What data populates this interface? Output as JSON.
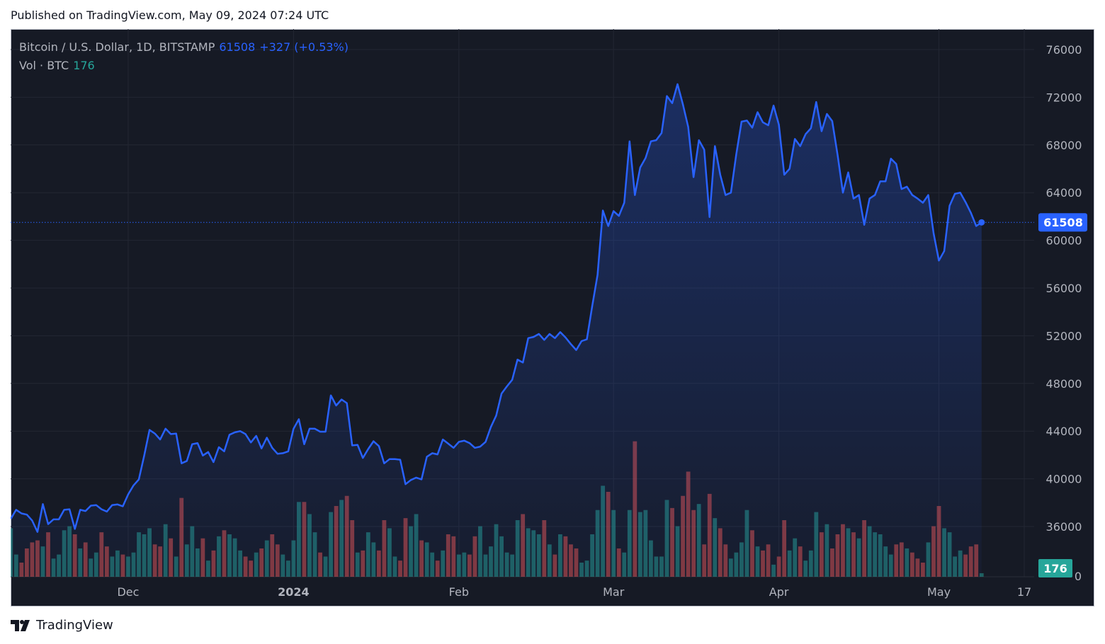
{
  "header": {
    "published": "Published on TradingView.com, May 09, 2024 07:24 UTC"
  },
  "legend": {
    "symbol": "Bitcoin / U.S. Dollar, 1D, BITSTAMP",
    "last": "61508",
    "change": "+327 (+0.53%)",
    "vol_label": "Vol · BTC",
    "vol_value": "176"
  },
  "footer": {
    "brand": "TradingView"
  },
  "colors": {
    "line": "#2962ff",
    "up": "#26a69a",
    "down": "#ef5350",
    "bg": "#161a25",
    "grid": "#232733",
    "text": "#b2b5be"
  },
  "chart_data": {
    "type": "line",
    "title": "Bitcoin / U.S. Dollar, 1D, BITSTAMP",
    "start_date": "2023-11-09",
    "end_date": "2024-05-09",
    "ylim": [
      34200,
      78100
    ],
    "y_ticks": [
      "76000",
      "72000",
      "68000",
      "64000",
      "60000",
      "56000",
      "52000",
      "48000",
      "44000",
      "40000",
      "36000"
    ],
    "x_ticks": [
      {
        "label": "Dec",
        "date": "2023-12-01"
      },
      {
        "label": "2024",
        "date": "2024-01-01"
      },
      {
        "label": "Feb",
        "date": "2024-02-01"
      },
      {
        "label": "Mar",
        "date": "2024-03-01"
      },
      {
        "label": "Apr",
        "date": "2024-04-01"
      },
      {
        "label": "May",
        "date": "2024-05-01"
      },
      {
        "label": "17",
        "date": "2024-05-17"
      }
    ],
    "last_price_label": "61508",
    "volume_axis_label": "0",
    "last_volume_label": "176",
    "close": [
      36650,
      37400,
      37100,
      37000,
      36500,
      35550,
      37880,
      36200,
      36600,
      36600,
      37400,
      37450,
      35800,
      37400,
      37300,
      37750,
      37800,
      37450,
      37250,
      37800,
      37850,
      37700,
      38700,
      39450,
      39950,
      41950,
      44100,
      43800,
      43300,
      44200,
      43750,
      43800,
      41300,
      41500,
      42900,
      43000,
      41950,
      42250,
      41400,
      42650,
      42300,
      43700,
      43900,
      44000,
      43750,
      43050,
      43600,
      42550,
      43450,
      42600,
      42100,
      42150,
      42300,
      44200,
      45000,
      42900,
      44200,
      44200,
      43950,
      43950,
      47000,
      46150,
      46650,
      46350,
      42800,
      42850,
      41750,
      42500,
      43150,
      42750,
      41300,
      41650,
      41650,
      41600,
      39550,
      39900,
      40100,
      39950,
      41850,
      42150,
      42050,
      43300,
      42950,
      42600,
      43100,
      43200,
      43000,
      42600,
      42700,
      43100,
      44350,
      45300,
      47150,
      47750,
      48300,
      50000,
      49750,
      51800,
      51900,
      52150,
      51650,
      52150,
      51800,
      52300,
      51850,
      51300,
      50800,
      51550,
      51700,
      54500,
      57100,
      62500,
      61200,
      62450,
      62050,
      63150,
      68300,
      63800,
      66100,
      66900,
      68300,
      68400,
      69000,
      72100,
      71500,
      73100,
      71400,
      69500,
      65300,
      68400,
      67600,
      61950,
      67900,
      65500,
      63800,
      64000,
      67200,
      69950,
      70050,
      69450,
      70750,
      69900,
      69650,
      71300,
      69700,
      65500,
      66000,
      68500,
      67900,
      68900,
      69400,
      71600,
      69150,
      70600,
      70000,
      67150,
      64000,
      65700,
      63500,
      63800,
      61300,
      63500,
      63800,
      64950,
      64950,
      66850,
      66400,
      64300,
      64500,
      63800,
      63500,
      63150,
      63800,
      60600,
      58300,
      59100,
      62900,
      63900,
      64000,
      63200,
      62300,
      61200,
      61508
    ],
    "volume": [
      2400,
      1100,
      700,
      1400,
      1700,
      1800,
      1500,
      2200,
      900,
      1100,
      2300,
      2500,
      2100,
      1400,
      1700,
      900,
      1200,
      2200,
      1500,
      1000,
      1300,
      1100,
      1000,
      1200,
      2200,
      2100,
      2400,
      1600,
      1500,
      2600,
      1900,
      1000,
      3900,
      1600,
      2500,
      1400,
      1900,
      800,
      1300,
      2000,
      2300,
      2100,
      1900,
      1300,
      1000,
      800,
      1200,
      1400,
      1800,
      2100,
      1600,
      1100,
      800,
      1800,
      3700,
      3700,
      3100,
      2200,
      1200,
      1000,
      3200,
      3500,
      3800,
      4000,
      2800,
      1200,
      1300,
      2200,
      1700,
      1300,
      2800,
      2400,
      1000,
      800,
      2900,
      2500,
      3100,
      1800,
      1700,
      1200,
      800,
      1300,
      2100,
      2000,
      1100,
      1200,
      1100,
      2000,
      2500,
      1100,
      1500,
      2600,
      2000,
      1200,
      1100,
      2800,
      3100,
      2400,
      2300,
      2100,
      2800,
      1600,
      1100,
      2100,
      2000,
      1600,
      1400,
      700,
      800,
      2100,
      3300,
      4500,
      4200,
      3300,
      1400,
      1200,
      3300,
      6700,
      3200,
      3300,
      1800,
      1000,
      1000,
      3800,
      3400,
      2500,
      4000,
      5200,
      3300,
      3600,
      1600,
      4100,
      2900,
      2400,
      1600,
      900,
      1200,
      1700,
      3300,
      2300,
      1500,
      1300,
      1600,
      600,
      1000,
      2800,
      1300,
      1900,
      1500,
      800,
      1300,
      3200,
      2200,
      2600,
      1400,
      2100,
      2600,
      2400,
      2200,
      1900,
      2800,
      2500,
      2200,
      2100,
      1500,
      1100,
      1600,
      1700,
      1400,
      1200,
      900,
      700,
      1700,
      2500,
      3500,
      2400,
      2200,
      1000,
      1300,
      1100,
      1500,
      1600,
      176
    ]
  }
}
